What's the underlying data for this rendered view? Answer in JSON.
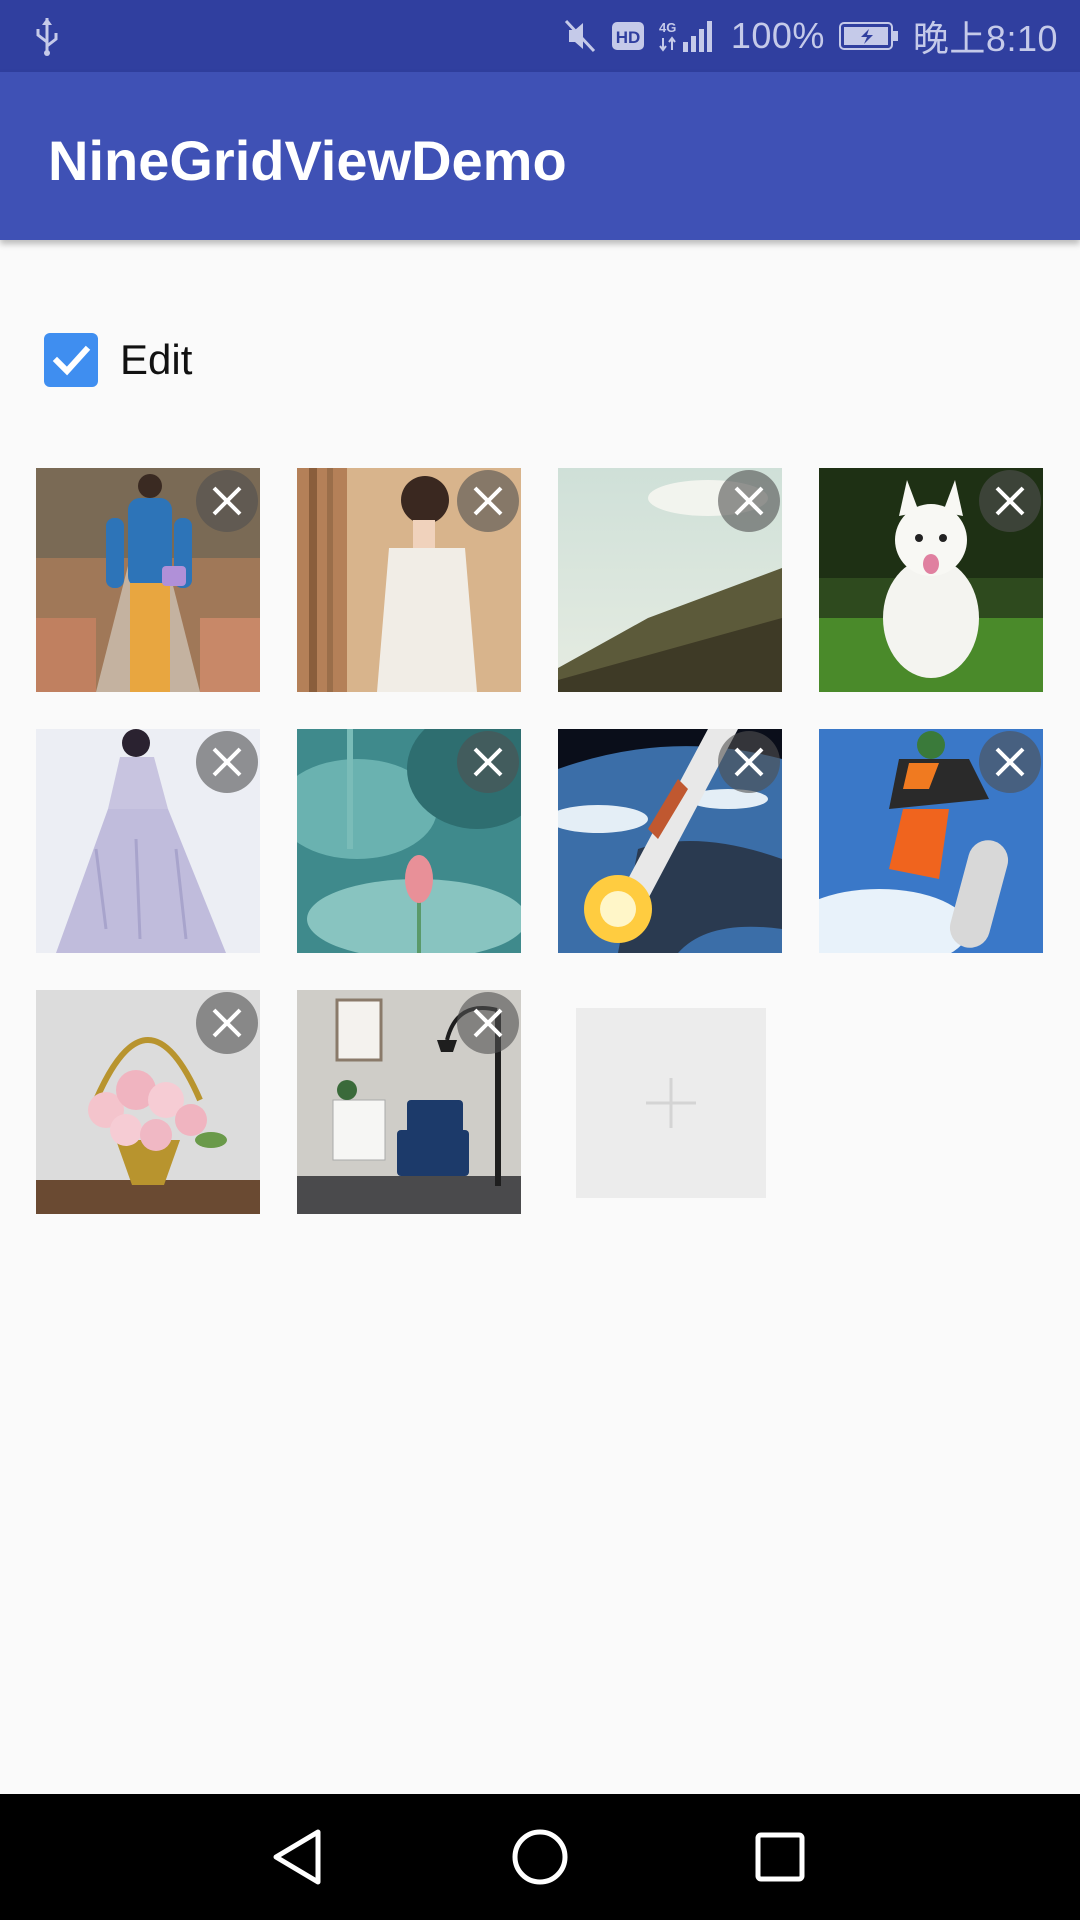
{
  "status_bar": {
    "battery": "100%",
    "time": "晚上8:10",
    "icons": [
      "usb-icon",
      "mute-icon",
      "hd-icon",
      "4g-signal-icon",
      "battery-icon"
    ]
  },
  "app_bar": {
    "title": "NineGridViewDemo"
  },
  "edit_toggle": {
    "label": "Edit",
    "checked": true
  },
  "grid": {
    "photos": [
      {
        "subject": "woman-blue-sweater-yellow-pants"
      },
      {
        "subject": "woman-white-dress"
      },
      {
        "subject": "grassy-hill-sky"
      },
      {
        "subject": "white-dog-on-grass"
      },
      {
        "subject": "lavender-gown"
      },
      {
        "subject": "lotus-bud"
      },
      {
        "subject": "rocket-over-earth"
      },
      {
        "subject": "snowboarder"
      },
      {
        "subject": "roses-basket"
      },
      {
        "subject": "living-room-armchair"
      }
    ],
    "delete_icon": "close-icon",
    "add_icon": "plus-icon"
  },
  "colors": {
    "status_bar": "#303f9f",
    "app_bar": "#3f51b5",
    "checkbox": "#3f8ef0",
    "background": "#fafafa"
  },
  "nav_bar": {
    "icons": [
      "back-icon",
      "home-icon",
      "recents-icon"
    ]
  }
}
